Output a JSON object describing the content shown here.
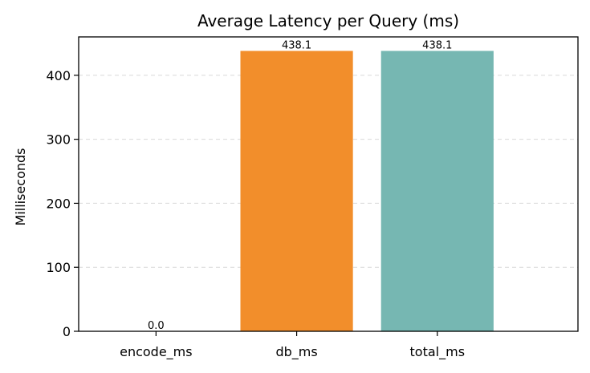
{
  "chart_data": {
    "type": "bar",
    "title": "Average Latency per Query (ms)",
    "xlabel": "",
    "ylabel": "Milliseconds",
    "categories": [
      "encode_ms",
      "db_ms",
      "total_ms"
    ],
    "values": [
      0.0,
      438.1,
      438.1
    ],
    "value_labels": [
      "0.0",
      "438.1",
      "438.1"
    ],
    "bar_colors": [
      "#4c72b0",
      "#f28e2b",
      "#76b7b2"
    ],
    "ylim": [
      0,
      460
    ],
    "yticks": [
      0,
      100,
      200,
      300,
      400
    ],
    "ytick_labels": [
      "0",
      "100",
      "200",
      "300",
      "400"
    ],
    "grid": "horizontal dashed",
    "legend": "none"
  }
}
